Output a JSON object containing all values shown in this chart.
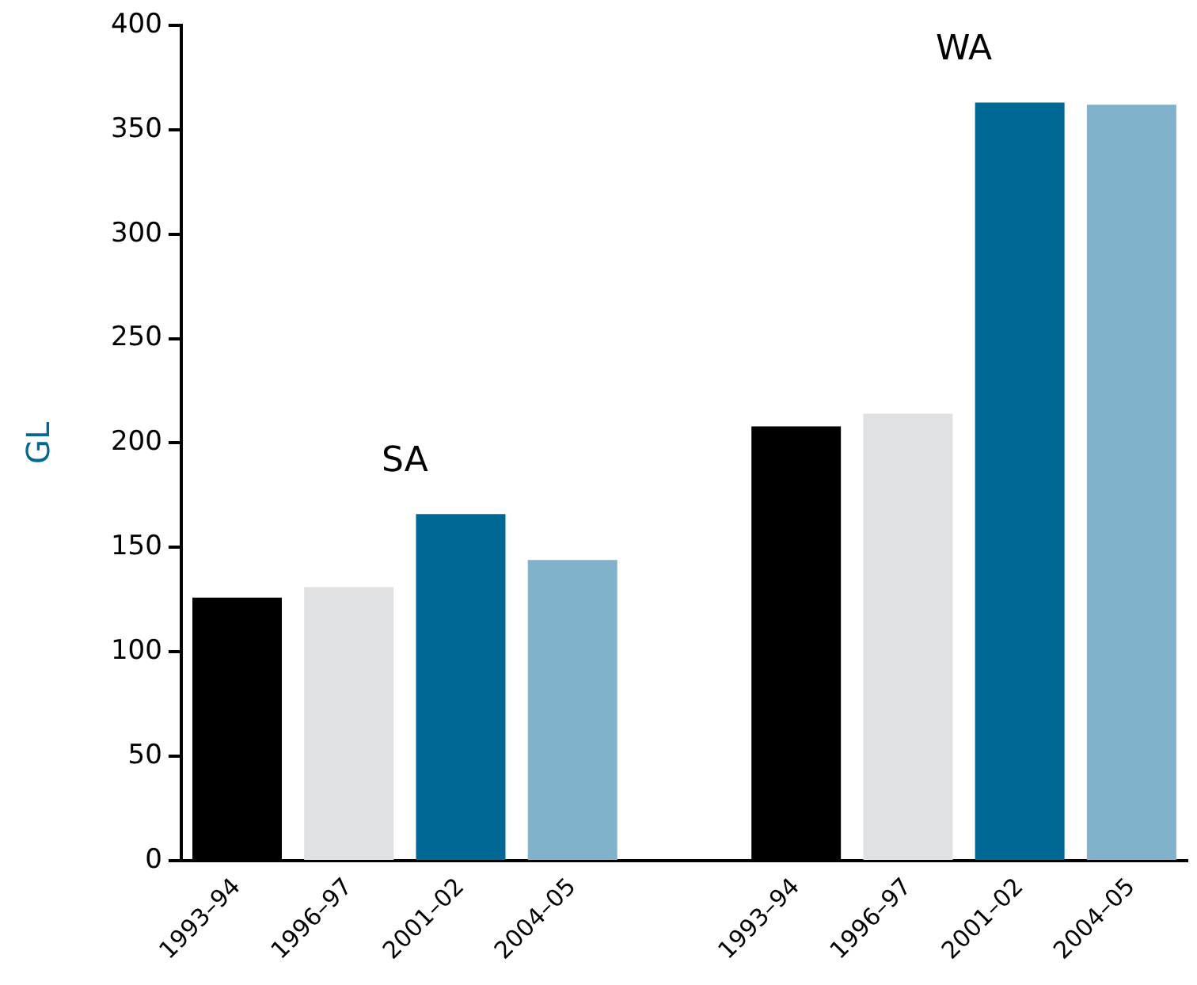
{
  "chart_data": {
    "type": "bar",
    "ylabel": "GL",
    "categories": [
      "1993–94",
      "1996–97",
      "2001–02",
      "2004–05",
      null,
      "1993–94",
      "1996–97",
      "2001–02",
      "2004–05"
    ],
    "values": [
      126,
      131,
      166,
      144,
      null,
      208,
      214,
      363,
      362
    ],
    "colors": [
      "#000000",
      "#e0e1e3",
      "#006895",
      "#80b3cb",
      null,
      "#000000",
      "#e0e1e3",
      "#006895",
      "#80b3cb"
    ],
    "ylim": [
      0,
      400
    ],
    "yticks": [
      0,
      50,
      100,
      150,
      200,
      250,
      300,
      350,
      400
    ],
    "annotations": [
      "SA",
      "WA"
    ],
    "grid": false,
    "legend": false
  }
}
